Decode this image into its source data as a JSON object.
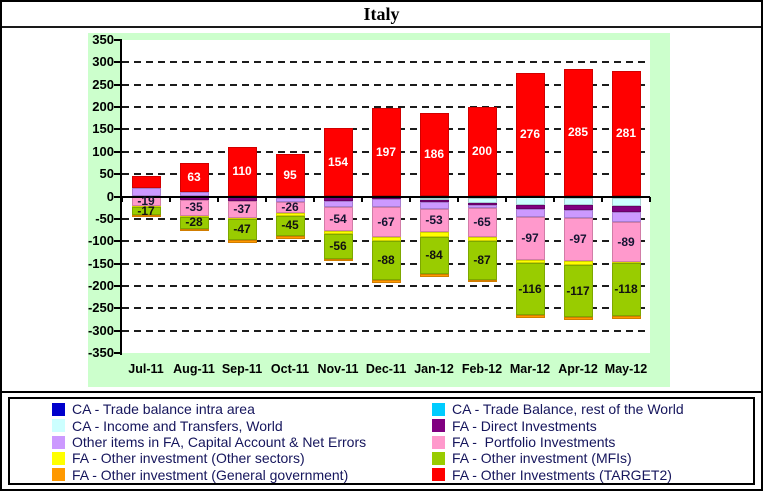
{
  "title": "Italy",
  "chart_data": {
    "type": "bar",
    "stacked": true,
    "title": "Italy",
    "xlabel": "",
    "ylabel": "",
    "ylim": [
      -350,
      350
    ],
    "ytick_step": 50,
    "grid": "horizontal-dashed",
    "legend_position": "bottom-two-columns",
    "chart_background": "#ccffcc",
    "plot_background": "#ffffff",
    "y_ticks": [
      "350",
      "300",
      "250",
      "200",
      "150",
      "100",
      "50",
      "0",
      "-50",
      "-100",
      "-150",
      "-200",
      "-250",
      "-300",
      "-350"
    ],
    "categories": [
      "Jul-11",
      "Aug-11",
      "Sep-11",
      "Oct-11",
      "Nov-11",
      "Dec-11",
      "Jan-12",
      "Feb-12",
      "Mar-12",
      "Apr-12",
      "May-12"
    ],
    "series": [
      {
        "name": "CA - Trade balance intra area",
        "color": "#0000cc",
        "values": [
          0,
          0,
          0,
          0,
          0,
          0,
          0,
          -4,
          -2,
          -4,
          -4
        ],
        "labels": null
      },
      {
        "name": "CA - Trade Balance, rest of the World",
        "color": "#00ccff",
        "values": [
          0,
          0,
          0,
          0,
          0,
          0,
          -4,
          0,
          0,
          0,
          0
        ],
        "labels": null
      },
      {
        "name": "CA - Income and Transfers, World",
        "color": "#ccffff",
        "values": [
          0,
          0,
          0,
          0,
          0,
          0,
          -4,
          -10,
          -16,
          -16,
          -18
        ],
        "labels": null
      },
      {
        "name": "FA - Direct Investments",
        "color": "#800080",
        "values": [
          -2,
          -8,
          -10,
          -4,
          -10,
          -6,
          -4,
          -4,
          -10,
          -10,
          -12
        ],
        "labels": null
      },
      {
        "name": "Other items in FA, Capital Account & Net Errors",
        "color": "#cc99ff",
        "values": [
          18,
          11,
          0,
          -8,
          -14,
          -18,
          -15,
          -8,
          -18,
          -18,
          -24
        ],
        "labels": null
      },
      {
        "name": "FA -  Portfolio Investments",
        "color": "#ff99cc",
        "values": [
          -19,
          -35,
          -37,
          -26,
          -54,
          -67,
          -53,
          -65,
          -97,
          -97,
          -89
        ],
        "labels": [
          "-19",
          "-35",
          "-37",
          "-26",
          "-54",
          "-67",
          "-53",
          "-65",
          "-97",
          "-97",
          "-89"
        ],
        "label_color": "#141432"
      },
      {
        "name": "FA - Other investment (Other sectors)",
        "color": "#ffff00",
        "values": [
          -3,
          -2,
          -3,
          -5,
          -6,
          -8,
          -10,
          -8,
          -6,
          -8,
          -2
        ],
        "labels": null
      },
      {
        "name": "FA - Other investment (MFIs)",
        "color": "#99cc00",
        "values": [
          -17,
          -28,
          -47,
          -45,
          -56,
          -88,
          -84,
          -87,
          -116,
          -117,
          -118
        ],
        "labels": [
          "-17",
          "-28",
          "-47",
          "-45",
          "-56",
          "-88",
          "-84",
          "-87",
          "-116",
          "-117",
          "-118"
        ],
        "label_color": "#111111"
      },
      {
        "name": "FA - Other investment (General government)",
        "color": "#ff9900",
        "values": [
          -4,
          -5,
          -6,
          -6,
          -5,
          -6,
          -5,
          -6,
          -6,
          -6,
          -8
        ],
        "labels": null
      },
      {
        "name": "FA - Other Investments (TARGET2)",
        "color": "#ff0000",
        "values": [
          27,
          63,
          110,
          95,
          154,
          197,
          186,
          200,
          276,
          285,
          281
        ],
        "labels": [
          null,
          "63",
          "110",
          "95",
          "154",
          "197",
          "186",
          "200",
          "276",
          "285",
          "281"
        ],
        "label_color": "#ffffff"
      }
    ]
  },
  "legend": {
    "left": [
      {
        "name": "ca-trade-balance-intra-area",
        "label": "CA - Trade balance intra area",
        "color": "#0000cc"
      },
      {
        "name": "ca-income-and-transfers-world",
        "label": "CA - Income and Transfers, World",
        "color": "#ccffff"
      },
      {
        "name": "other-items-in-fa-capital-account-net-errors",
        "label": "Other items in FA, Capital Account & Net Errors",
        "color": "#cc99ff"
      },
      {
        "name": "fa-other-investment-other-sectors",
        "label": "FA - Other investment (Other sectors)",
        "color": "#ffff00"
      },
      {
        "name": "fa-other-investment-general-government",
        "label": "FA - Other investment (General government)",
        "color": "#ff9900"
      }
    ],
    "right": [
      {
        "name": "ca-trade-balance-rest-of-world",
        "label": "CA - Trade Balance, rest of the World",
        "color": "#00ccff"
      },
      {
        "name": "fa-direct-investments",
        "label": "FA - Direct Investments",
        "color": "#800080"
      },
      {
        "name": "fa-portfolio-investments",
        "label": "FA -  Portfolio Investments",
        "color": "#ff99cc"
      },
      {
        "name": "fa-other-investment-mfis",
        "label": "FA - Other investment (MFIs)",
        "color": "#99cc00"
      },
      {
        "name": "fa-other-investments-target2",
        "label": "FA - Other Investments (TARGET2)",
        "color": "#ff0000"
      }
    ]
  }
}
